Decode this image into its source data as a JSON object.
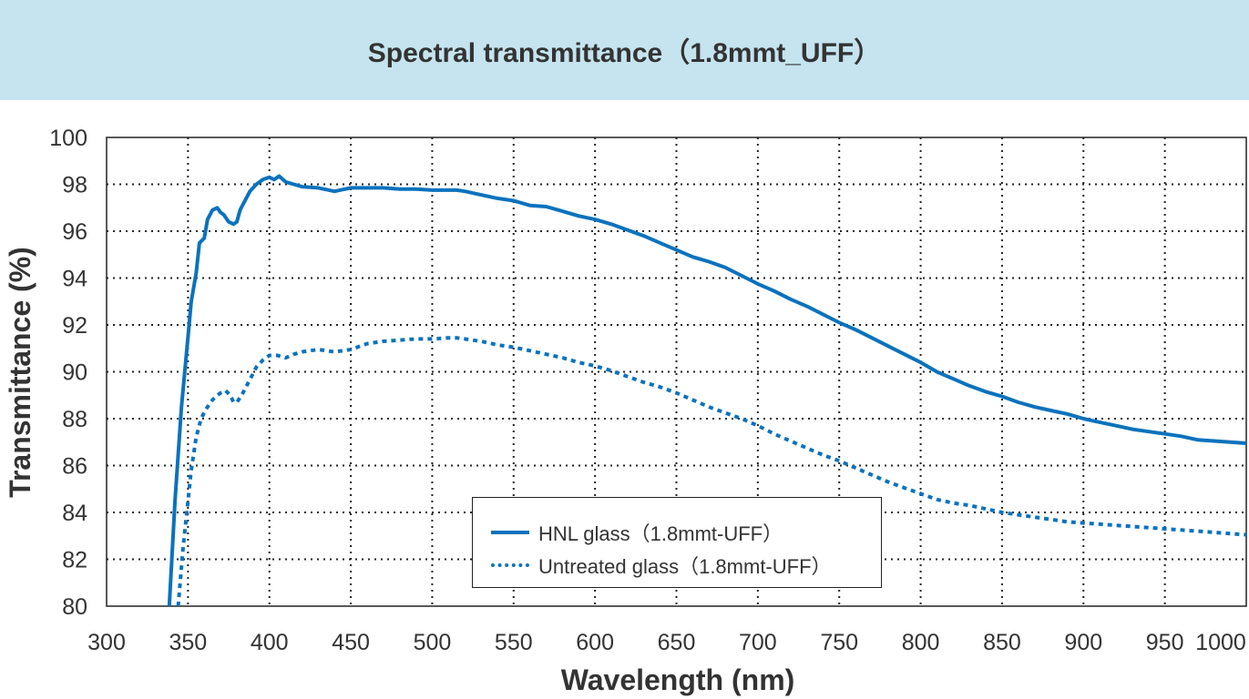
{
  "title": "Spectral transmittance（1.8mmt_UFF）",
  "chart_data": {
    "type": "line",
    "xlabel": "Wavelength (nm)",
    "ylabel": "Transmittance (%)",
    "xlim": [
      300,
      1000
    ],
    "ylim": [
      80,
      100
    ],
    "xticks": [
      300,
      350,
      400,
      450,
      500,
      550,
      600,
      650,
      700,
      750,
      800,
      850,
      900,
      950,
      1000
    ],
    "yticks": [
      80,
      82,
      84,
      86,
      88,
      90,
      92,
      94,
      96,
      98,
      100
    ],
    "grid": "dotted",
    "legend_position": "bottom-center",
    "series": [
      {
        "name": "HNL glass（1.8mmt-UFF）",
        "color": "#0a72bd",
        "style": "solid",
        "x": [
          338.5,
          342,
          346,
          350,
          352,
          355,
          357,
          360,
          362,
          365,
          368,
          370,
          372,
          375,
          378,
          380,
          382,
          385,
          388,
          392,
          396,
          400,
          403,
          406,
          410,
          415,
          420,
          430,
          440,
          450,
          460,
          470,
          480,
          490,
          500,
          510,
          515,
          520,
          530,
          540,
          550,
          560,
          570,
          580,
          590,
          600,
          610,
          620,
          630,
          640,
          650,
          660,
          670,
          680,
          690,
          700,
          710,
          720,
          730,
          740,
          750,
          760,
          770,
          780,
          790,
          800,
          810,
          820,
          830,
          840,
          850,
          860,
          870,
          880,
          890,
          900,
          910,
          920,
          930,
          940,
          950,
          960,
          970,
          980,
          990,
          1000
        ],
        "y": [
          80,
          84.5,
          88.5,
          91.5,
          93,
          94.2,
          95.5,
          95.7,
          96.5,
          96.9,
          97.0,
          96.8,
          96.7,
          96.4,
          96.3,
          96.4,
          96.9,
          97.3,
          97.7,
          98.0,
          98.2,
          98.3,
          98.2,
          98.35,
          98.1,
          98.0,
          97.9,
          97.85,
          97.7,
          97.85,
          97.85,
          97.85,
          97.8,
          97.8,
          97.75,
          97.75,
          97.75,
          97.7,
          97.55,
          97.4,
          97.3,
          97.1,
          97.05,
          96.85,
          96.65,
          96.5,
          96.3,
          96.05,
          95.8,
          95.5,
          95.2,
          94.9,
          94.7,
          94.45,
          94.1,
          93.75,
          93.45,
          93.1,
          92.8,
          92.45,
          92.1,
          91.8,
          91.45,
          91.1,
          90.75,
          90.4,
          90.0,
          89.7,
          89.4,
          89.15,
          88.95,
          88.7,
          88.5,
          88.35,
          88.2,
          88.0,
          87.85,
          87.7,
          87.55,
          87.45,
          87.35,
          87.25,
          87.1,
          87.05,
          87.0,
          86.95
        ]
      },
      {
        "name": "Untreated glass（1.8mmt-UFF）",
        "color": "#0a72bd",
        "style": "dotted",
        "x": [
          344,
          347,
          350,
          352,
          355,
          358,
          361,
          365,
          368,
          370,
          373,
          376,
          378,
          380,
          383,
          386,
          389,
          392,
          396,
          400,
          405,
          410,
          415,
          420,
          430,
          440,
          450,
          460,
          470,
          480,
          490,
          500,
          510,
          515,
          520,
          530,
          540,
          550,
          560,
          570,
          580,
          590,
          600,
          610,
          620,
          630,
          640,
          650,
          660,
          670,
          680,
          690,
          700,
          710,
          720,
          730,
          740,
          750,
          760,
          770,
          780,
          790,
          800,
          810,
          820,
          830,
          840,
          850,
          860,
          870,
          880,
          890,
          900,
          910,
          920,
          930,
          940,
          950,
          960,
          970,
          980,
          990,
          1000
        ],
        "y": [
          80,
          82.5,
          84.5,
          85.8,
          87.2,
          88.0,
          88.4,
          88.8,
          89.0,
          89.1,
          89.2,
          89.0,
          88.7,
          88.7,
          89.0,
          89.4,
          89.8,
          90.2,
          90.5,
          90.7,
          90.7,
          90.6,
          90.75,
          90.85,
          90.95,
          90.85,
          90.95,
          91.2,
          91.3,
          91.35,
          91.4,
          91.4,
          91.45,
          91.45,
          91.4,
          91.3,
          91.15,
          91.05,
          90.9,
          90.75,
          90.6,
          90.4,
          90.25,
          90.05,
          89.8,
          89.55,
          89.35,
          89.1,
          88.8,
          88.5,
          88.25,
          88.0,
          87.7,
          87.35,
          87.05,
          86.75,
          86.45,
          86.2,
          85.9,
          85.6,
          85.3,
          85.05,
          84.8,
          84.55,
          84.4,
          84.3,
          84.15,
          84.0,
          83.9,
          83.8,
          83.7,
          83.6,
          83.55,
          83.5,
          83.45,
          83.4,
          83.35,
          83.3,
          83.25,
          83.2,
          83.15,
          83.1,
          83.05
        ]
      }
    ]
  }
}
